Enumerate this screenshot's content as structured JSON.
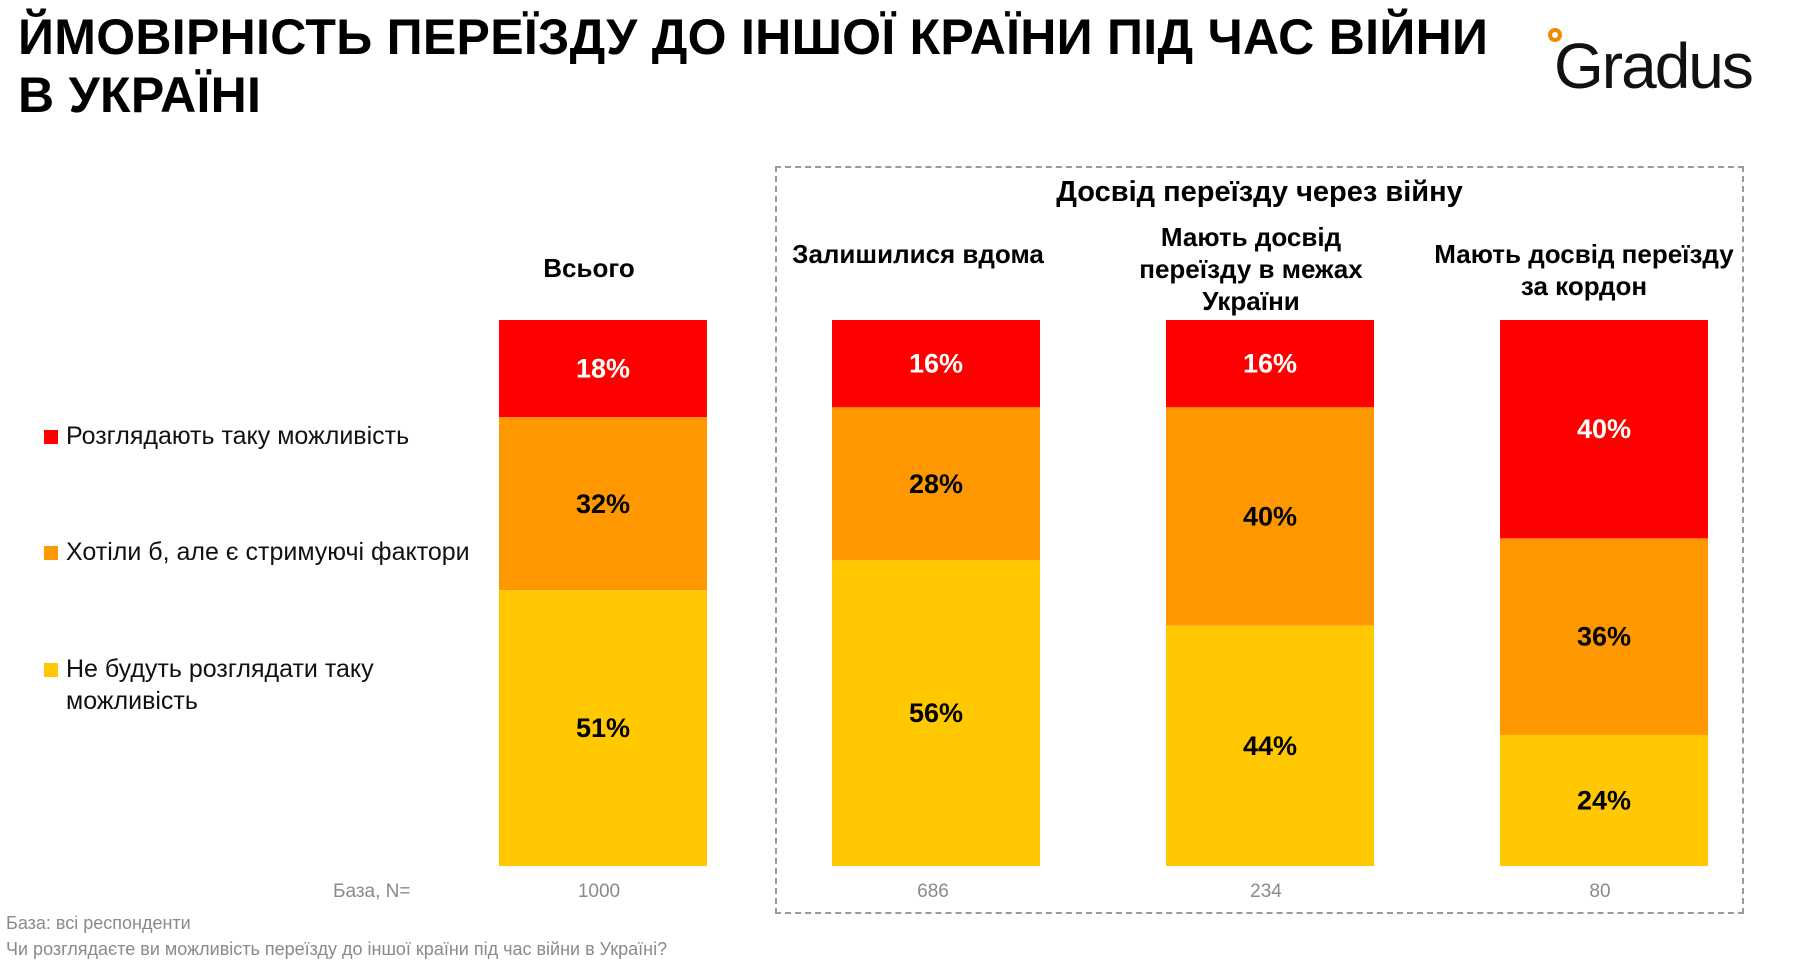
{
  "title": "ЙМОВІРНІСТЬ ПЕРЕЇЗДУ ДО ІНШОЇ КРАЇНИ ПІД ЧАС ВІЙНИ В УКРАЇНІ",
  "logo_text": "Gradus",
  "colors": {
    "consider": "#ff0000",
    "would_like": "#ff9800",
    "will_not": "#ffc800",
    "label_consider": "#ffffff",
    "label_would_like": "#000000",
    "label_will_not": "#000000"
  },
  "legend": [
    {
      "key": "consider",
      "label": "Розглядають таку можливість"
    },
    {
      "key": "would_like",
      "label": "Хотіли б, але є стримуючі фактори"
    },
    {
      "key": "will_not",
      "label": "Не будуть розглядати таку можливість"
    }
  ],
  "group_title": "Досвід переїзду через війну",
  "base_label": "База, N=",
  "footnotes": {
    "base": "База: всі респонденти",
    "question": "Чи розглядаєте ви можливість переїзду до іншої країни під час війни в Україні?"
  },
  "chart_data": {
    "type": "bar",
    "stacked": true,
    "normalized": true,
    "title": "ЙМОВІРНІСТЬ ПЕРЕЇЗДУ ДО ІНШОЇ КРАЇНИ ПІД ЧАС ВІЙНИ В УКРАЇНІ",
    "categories": [
      "Всього",
      "Залишилися вдома",
      "Мають досвід переїзду в межах України",
      "Мають досвід переїзду за кордон"
    ],
    "base_n": [
      "1000",
      "686",
      "234",
      "80"
    ],
    "series": [
      {
        "name": "Розглядають таку можливість",
        "key": "consider",
        "values": [
          18,
          16,
          16,
          40
        ]
      },
      {
        "name": "Хотіли б, але є стримуючі фактори",
        "key": "would_like",
        "values": [
          32,
          28,
          40,
          36
        ]
      },
      {
        "name": "Не будуть розглядати таку можливість",
        "key": "will_not",
        "values": [
          51,
          56,
          44,
          24
        ]
      }
    ],
    "unit": "%",
    "xlabel": "",
    "ylabel": "",
    "ylim": [
      0,
      100
    ]
  }
}
